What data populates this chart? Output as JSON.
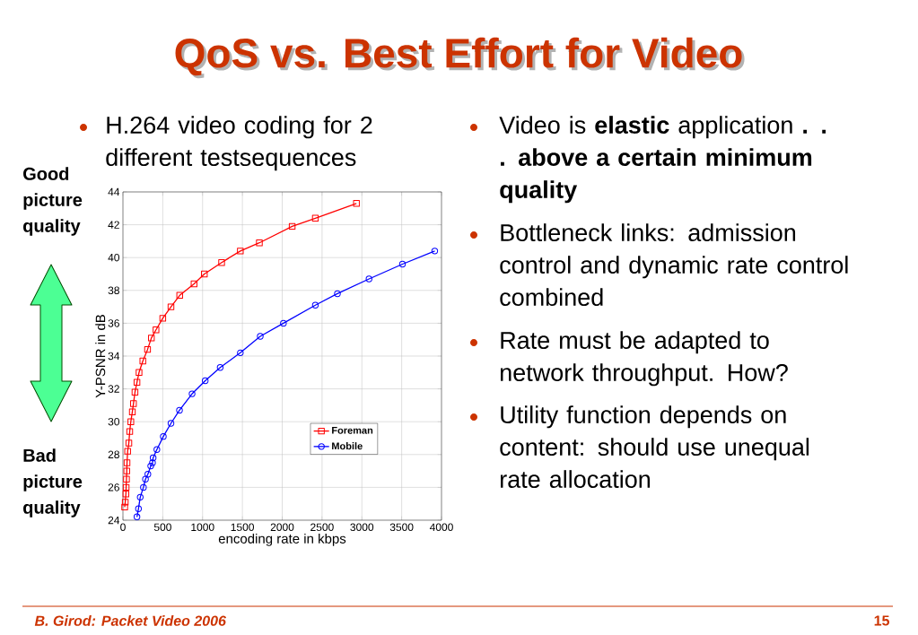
{
  "chart_data": {
    "type": "line",
    "title": "QoS vs. Best Effort for Video",
    "xlabel": "encoding rate in kbps",
    "ylabel": "Y-PSNR in dB",
    "xlim": [
      0,
      4000
    ],
    "ylim": [
      24,
      44
    ],
    "xticks": [
      0,
      500,
      1000,
      1500,
      2000,
      2500,
      3000,
      3500,
      4000
    ],
    "yticks": [
      24,
      26,
      28,
      30,
      32,
      34,
      36,
      38,
      40,
      42,
      44
    ],
    "grid": true,
    "legend": "bottom right",
    "line_style": "solid",
    "series": [
      {
        "name": "Foreman",
        "color": "#ff0000",
        "marker": "square",
        "x": [
          22,
          29,
          37,
          40,
          44,
          48,
          51,
          59,
          74,
          85,
          99,
          118,
          132,
          151,
          176,
          202,
          250,
          309,
          357,
          415,
          500,
          603,
          713,
          893,
          1022,
          1239,
          1474,
          1713,
          2125,
          2416,
          2932
        ],
        "values": [
          24.8,
          25.1,
          25.6,
          26.0,
          26.5,
          27.0,
          27.5,
          28.2,
          28.7,
          29.4,
          30.0,
          30.6,
          31.1,
          31.8,
          32.4,
          33.0,
          33.7,
          34.4,
          35.1,
          35.6,
          36.3,
          37.0,
          37.7,
          38.4,
          39.0,
          39.7,
          40.4,
          40.9,
          41.9,
          42.4,
          43.3
        ]
      },
      {
        "name": "Mobile",
        "color": "#0000ff",
        "marker": "circle",
        "x": [
          176,
          195,
          217,
          257,
          283,
          313,
          349,
          371,
          379,
          426,
          507,
          603,
          710,
          868,
          1033,
          1221,
          1474,
          1724,
          2015,
          2416,
          2693,
          3090,
          3510,
          3915
        ],
        "values": [
          24.2,
          24.7,
          25.4,
          26.0,
          26.5,
          26.8,
          27.3,
          27.5,
          27.8,
          28.3,
          29.1,
          29.9,
          30.7,
          31.7,
          32.5,
          33.3,
          34.2,
          35.2,
          36.0,
          37.1,
          37.8,
          38.7,
          39.6,
          40.4
        ]
      }
    ],
    "annotations": [
      "H.264 video coding for 2 different testsequences",
      "Good picture quality",
      "Bad picture quality",
      "Video is **elastic** application **. . .  above a certain minimum quality**",
      "Bottleneck links: admission control and dynamic rate control combined",
      "Rate must be adapted to network throughput. How?",
      "Utility function depends on content: should use unequal rate allocation",
      "B. Girod: Packet Video 2006",
      "15"
    ]
  }
}
